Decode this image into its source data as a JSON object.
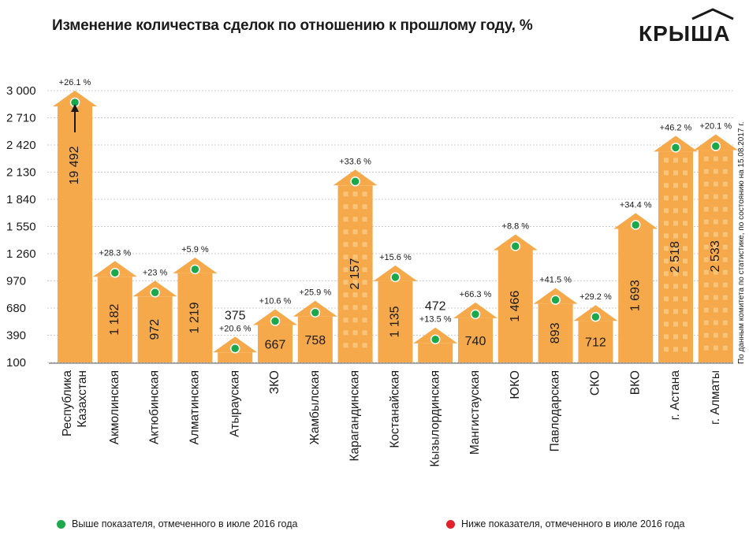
{
  "title": "Изменение количества сделок по отношению к прошлому году, %",
  "logo_text": "КРЫША",
  "source_note": "По данным комитета по статистике, по состоянию на 15.08.2017 г.",
  "legend": [
    {
      "label": "Выше показателя, отмеченного в июле 2016 года",
      "color": "#1aa84a"
    },
    {
      "label": "Ниже показателя, отмеченного в июле 2016 года",
      "color": "#e0202a"
    }
  ],
  "colors": {
    "bar": "#f5a94a",
    "bar_light": "#f8c47a",
    "grid": "#cfcfcf",
    "marker": "#1aa84a"
  },
  "chart_data": {
    "type": "bar",
    "title": "Изменение количества сделок по отношению к прошлому году, %",
    "yticks": [
      "100",
      "390",
      "680",
      "970",
      "1 260",
      "1 550",
      "1 840",
      "2 130",
      "2 420",
      "2 710",
      "3 000"
    ],
    "ylim": [
      100,
      3000
    ],
    "grid": true,
    "legend_position": "bottom",
    "categories": [
      "Республика Казахстан",
      "Акмолинская",
      "Актюбинская",
      "Алматинская",
      "Атырауская",
      "ЗКО",
      "Жамбылская",
      "Карагандинская",
      "Костанайская",
      "Кызылординская",
      "Мангистауская",
      "ЮКО",
      "Павлодарская",
      "СКО",
      "ВКО",
      "г. Астана",
      "г. Алматы"
    ],
    "values": [
      19492,
      1182,
      972,
      1219,
      375,
      667,
      758,
      2157,
      1135,
      472,
      740,
      1466,
      893,
      712,
      1693,
      2518,
      2533
    ],
    "value_labels": [
      "19 492",
      "1 182",
      "972",
      "1 219",
      "375",
      "667",
      "758",
      "2 157",
      "1 135",
      "472",
      "740",
      "1 466",
      "893",
      "712",
      "1 693",
      "2 518",
      "2 533"
    ],
    "change_labels": [
      "+26.1 %",
      "+28.3 %",
      "+23 %",
      "+5.9 %",
      "+20.6 %",
      "+10.6 %",
      "+25.9 %",
      "+33.6 %",
      "+15.6 %",
      "+13.5 %",
      "+66.3 %",
      "+8.8 %",
      "+41.5 %",
      "+29.2 %",
      "+34.4 %",
      "+46.2 %",
      "+20.1 %"
    ],
    "change_status": [
      "above",
      "above",
      "above",
      "above",
      "above",
      "above",
      "above",
      "above",
      "above",
      "above",
      "above",
      "above",
      "above",
      "above",
      "above",
      "above",
      "above"
    ]
  }
}
